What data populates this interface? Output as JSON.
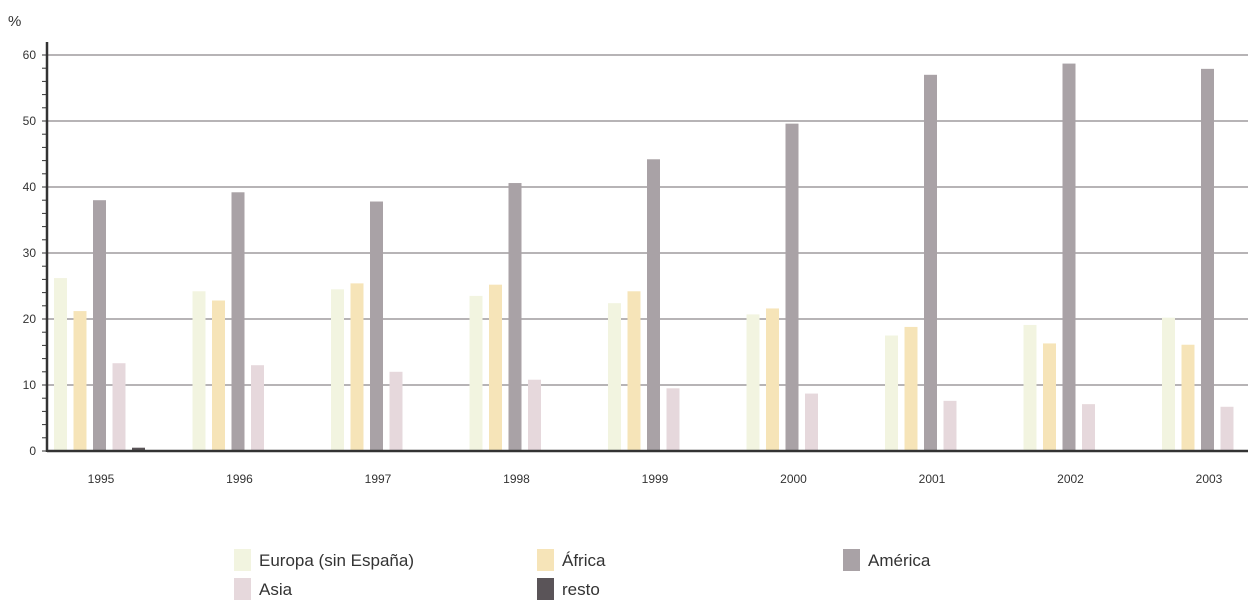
{
  "chart_data": {
    "type": "bar",
    "ylabel": "%",
    "ylim": [
      0,
      60
    ],
    "yticks": [
      0,
      10,
      20,
      30,
      40,
      50,
      60
    ],
    "grid": true,
    "legend_position": "bottom",
    "categories": [
      "1995",
      "1996",
      "1997",
      "1998",
      "1999",
      "2000",
      "2001",
      "2002",
      "2003"
    ],
    "series": [
      {
        "name": "Europa (sin España)",
        "color": "#f2f4e0",
        "values": [
          26.2,
          24.2,
          24.5,
          23.5,
          22.4,
          20.7,
          17.5,
          19.1,
          20.2
        ]
      },
      {
        "name": "África",
        "color": "#f6e4b8",
        "values": [
          21.2,
          22.8,
          25.4,
          25.2,
          24.2,
          21.6,
          18.8,
          16.3,
          16.1
        ]
      },
      {
        "name": "América",
        "color": "#a9a2a6",
        "values": [
          38.0,
          39.2,
          37.8,
          40.6,
          44.2,
          49.6,
          57.0,
          58.7,
          57.9
        ]
      },
      {
        "name": "Asia",
        "color": "#e6d8dc",
        "values": [
          13.3,
          13.0,
          12.0,
          10.8,
          9.5,
          8.7,
          7.6,
          7.1,
          6.7
        ]
      },
      {
        "name": "resto",
        "color": "#5a5458",
        "values": [
          0.5,
          0.0,
          0.0,
          0.0,
          0.0,
          0.0,
          0.0,
          0.0,
          0.0
        ]
      }
    ]
  }
}
